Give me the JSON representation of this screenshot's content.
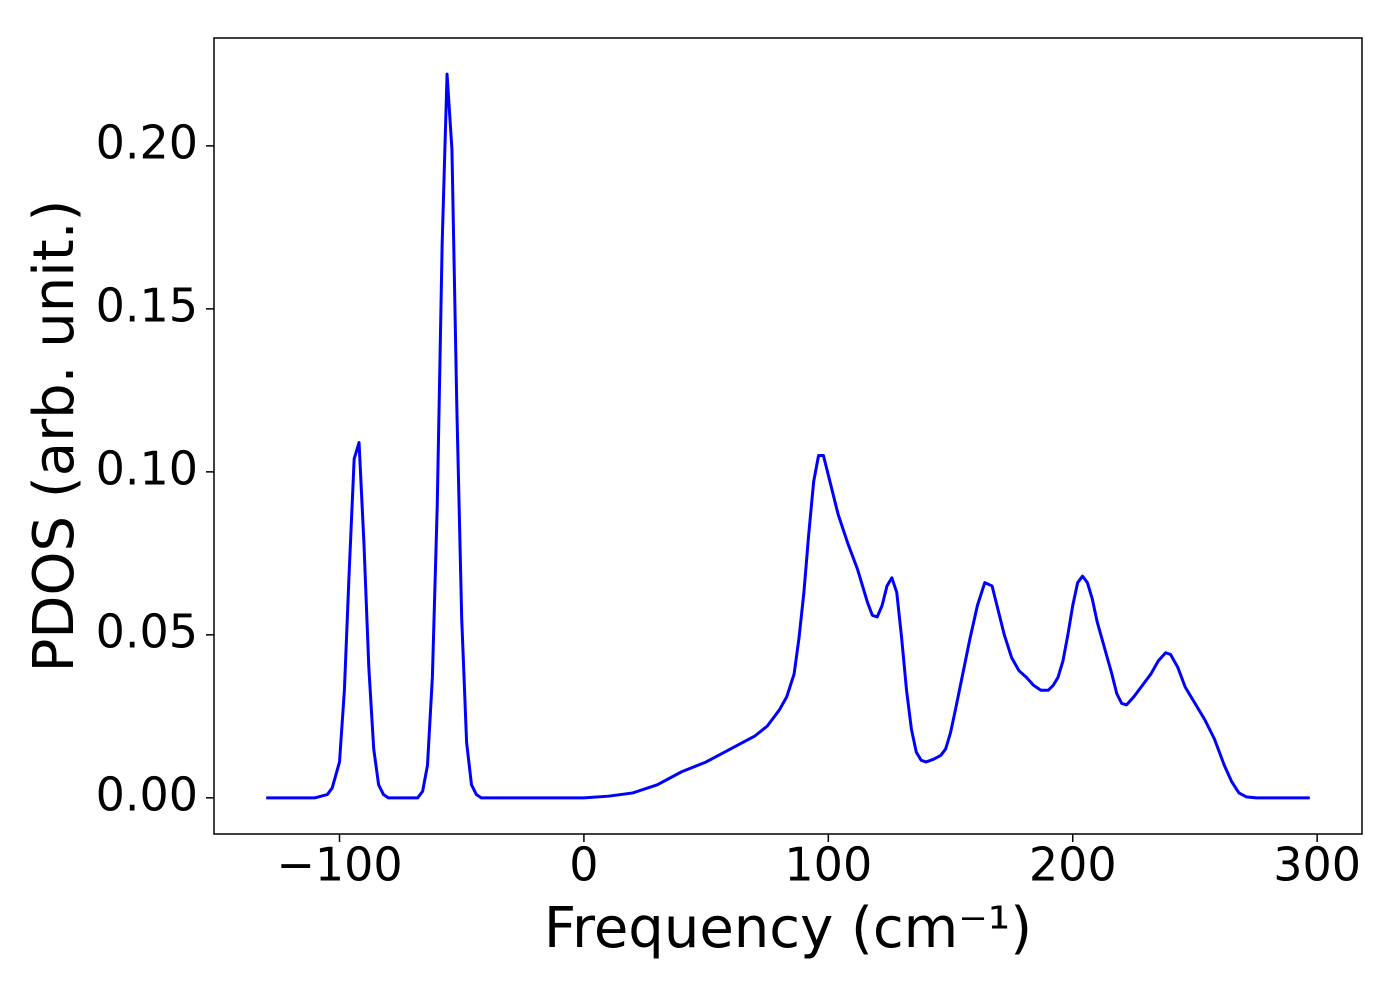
{
  "chart_data": {
    "type": "line",
    "xlabel": "Frequency (cm⁻¹)",
    "ylabel": "PDOS (arb. unit.)",
    "x": [
      -130,
      -110,
      -105,
      -103,
      -100,
      -98,
      -96,
      -94,
      -92,
      -90,
      -88,
      -86,
      -84,
      -82,
      -80,
      -68,
      -66,
      -64,
      -62,
      -60,
      -58,
      -56,
      -54,
      -52,
      -50,
      -48,
      -46,
      -44,
      -42,
      0,
      10,
      20,
      30,
      40,
      50,
      60,
      70,
      75,
      80,
      83,
      86,
      88,
      90,
      92,
      94,
      96,
      98,
      100,
      104,
      108,
      112,
      116,
      118,
      120,
      122,
      124,
      126,
      128,
      130,
      132,
      134,
      136,
      138,
      140,
      143,
      146,
      148,
      150,
      152,
      155,
      158,
      161,
      164,
      167,
      169,
      172,
      175,
      178,
      181,
      184,
      187,
      190,
      192,
      194,
      196,
      198,
      200,
      202,
      204,
      206,
      208,
      210,
      213,
      216,
      218,
      220,
      222,
      225,
      228,
      232,
      235,
      238,
      240,
      243,
      246,
      250,
      254,
      258,
      262,
      265,
      268,
      271,
      275,
      297
    ],
    "series": [
      {
        "name": "PDOS",
        "color": "#0000ff",
        "values": [
          0,
          0,
          0.001,
          0.003,
          0.011,
          0.033,
          0.07,
          0.104,
          0.109,
          0.078,
          0.04,
          0.015,
          0.004,
          0.001,
          0,
          0,
          0.002,
          0.01,
          0.037,
          0.09,
          0.17,
          0.222,
          0.199,
          0.12,
          0.055,
          0.017,
          0.004,
          0.001,
          0,
          0,
          0.0005,
          0.0015,
          0.004,
          0.008,
          0.011,
          0.015,
          0.019,
          0.022,
          0.027,
          0.031,
          0.038,
          0.049,
          0.063,
          0.081,
          0.097,
          0.105,
          0.105,
          0.099,
          0.087,
          0.078,
          0.07,
          0.06,
          0.056,
          0.0555,
          0.059,
          0.065,
          0.0675,
          0.063,
          0.049,
          0.033,
          0.021,
          0.014,
          0.0115,
          0.011,
          0.0118,
          0.013,
          0.015,
          0.02,
          0.027,
          0.038,
          0.049,
          0.059,
          0.066,
          0.065,
          0.059,
          0.05,
          0.043,
          0.039,
          0.037,
          0.0345,
          0.033,
          0.033,
          0.0345,
          0.037,
          0.042,
          0.05,
          0.059,
          0.066,
          0.068,
          0.066,
          0.061,
          0.054,
          0.046,
          0.038,
          0.032,
          0.029,
          0.0285,
          0.031,
          0.034,
          0.038,
          0.042,
          0.0445,
          0.044,
          0.04,
          0.034,
          0.029,
          0.024,
          0.018,
          0.01,
          0.005,
          0.0015,
          0.0003,
          0,
          0
        ]
      }
    ],
    "xlim": [
      -151.35,
      318.35
    ],
    "xticks": [
      {
        "value": -100,
        "label": "−100"
      },
      0,
      100,
      200,
      300
    ],
    "ylim": [
      -0.0111,
      0.2331
    ],
    "yticks": [
      {
        "value": 0,
        "label": "0.00"
      },
      {
        "value": 0.05,
        "label": "0.05"
      },
      {
        "value": 0.1,
        "label": "0.10"
      },
      {
        "value": 0.15,
        "label": "0.15"
      },
      {
        "value": 0.2,
        "label": "0.20"
      }
    ],
    "grid": false
  }
}
